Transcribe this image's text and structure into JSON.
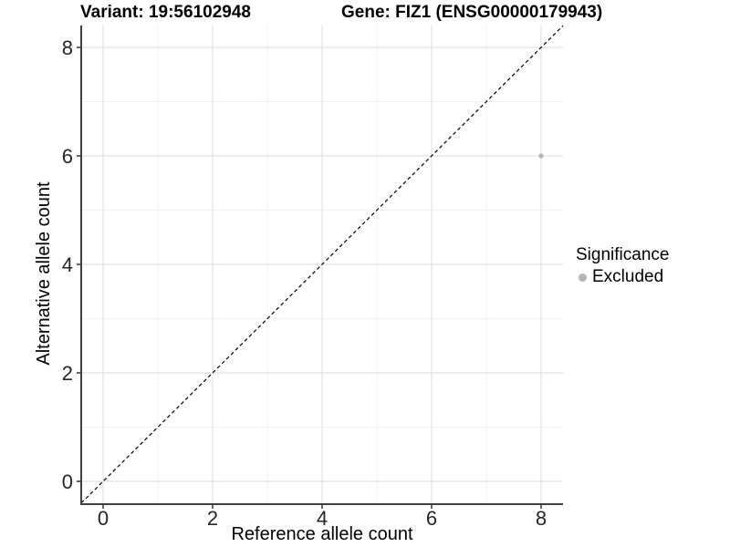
{
  "chart_data": {
    "type": "scatter",
    "title_left": "Variant: 19:56102948",
    "title_right": "Gene: FIZ1 (ENSG00000179943)",
    "xlabel": "Reference allele count",
    "ylabel": "Alternative allele count",
    "xlim": [
      -0.4,
      8.4
    ],
    "ylim": [
      -0.4,
      8.4
    ],
    "x_ticks": [
      0,
      2,
      4,
      6,
      8
    ],
    "y_ticks": [
      0,
      2,
      4,
      6,
      8
    ],
    "x_minor_ticks": [
      1,
      3,
      5,
      7
    ],
    "y_minor_ticks": [
      1,
      3,
      5,
      7
    ],
    "grid": "on",
    "identity_line": {
      "style": "dashed",
      "slope": 1,
      "intercept": 0,
      "color": "#000000"
    },
    "series": [
      {
        "name": "Excluded",
        "color": "#b3b3b3",
        "points": [
          {
            "x": 8,
            "y": 6
          }
        ]
      }
    ],
    "legend": {
      "title": "Significance",
      "position": "right",
      "items": [
        {
          "label": "Excluded",
          "color": "#b3b3b3"
        }
      ]
    }
  },
  "colors": {
    "background": "#ffffff",
    "grid_major": "#e2e2e2",
    "grid_minor": "#f0f0f0",
    "axis_line": "#404040",
    "tick_mark": "#404040",
    "tick_label": "#262626",
    "identity_line": "#000000"
  }
}
